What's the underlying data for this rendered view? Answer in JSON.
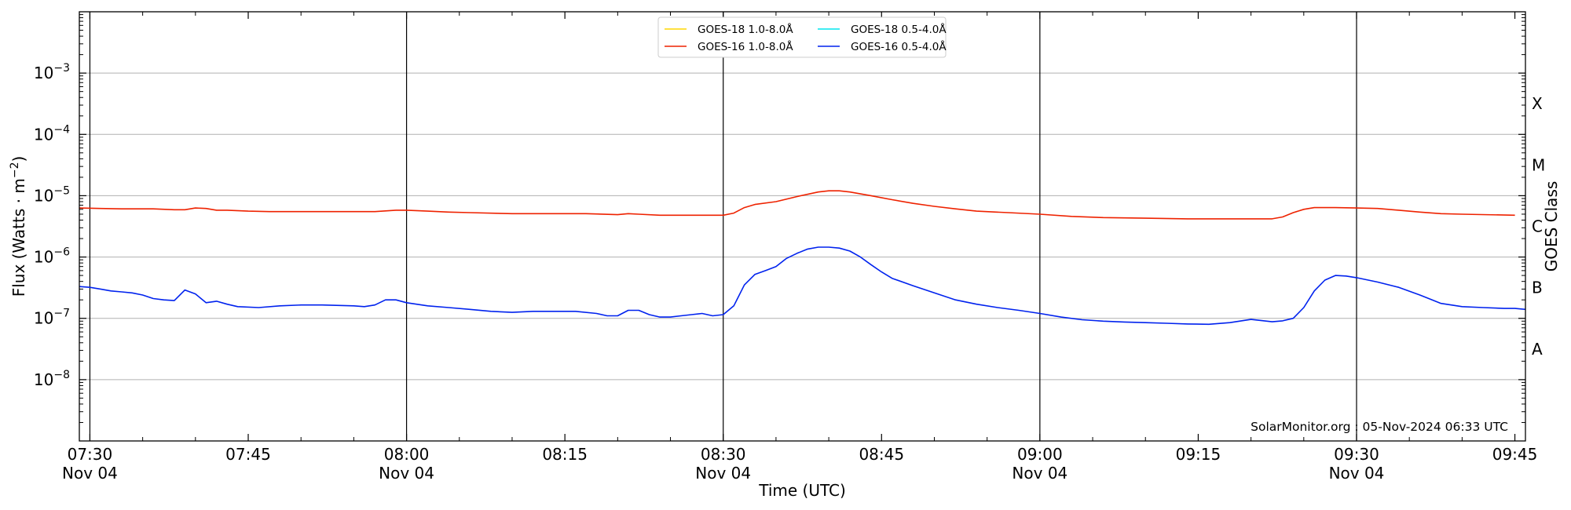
{
  "chart_data": {
    "type": "line",
    "xlabel": "Time (UTC)",
    "ylabel": "Flux (Watts · m⁻²)",
    "ylabel_parts": {
      "base": "Flux (Watts · m",
      "exp": "−2",
      "close": ")"
    },
    "right_label": "GOES Class",
    "x_range_minutes": [
      -1,
      136
    ],
    "x_origin": "Nov 04 07:30",
    "ylim": [
      1e-09,
      0.01
    ],
    "yscale": "log",
    "grid": "horizontal gridlines at each decade; vertical lines at each half hour",
    "legend_position": "top-center",
    "watermark": "SolarMonitor.org : 05-Nov-2024 06:33 UTC",
    "x_ticks": [
      {
        "minute": 0,
        "label": "07:30",
        "date": "Nov 04"
      },
      {
        "minute": 15,
        "label": "07:45",
        "date": ""
      },
      {
        "minute": 30,
        "label": "08:00",
        "date": "Nov 04"
      },
      {
        "minute": 45,
        "label": "08:15",
        "date": ""
      },
      {
        "minute": 60,
        "label": "08:30",
        "date": "Nov 04"
      },
      {
        "minute": 75,
        "label": "08:45",
        "date": ""
      },
      {
        "minute": 90,
        "label": "09:00",
        "date": "Nov 04"
      },
      {
        "minute": 105,
        "label": "09:15",
        "date": ""
      },
      {
        "minute": 120,
        "label": "09:30",
        "date": "Nov 04"
      },
      {
        "minute": 135,
        "label": "09:45",
        "date": ""
      }
    ],
    "y_ticks": [
      {
        "exp": -8,
        "label": "10",
        "sup": "−8"
      },
      {
        "exp": -7,
        "label": "10",
        "sup": "−7"
      },
      {
        "exp": -6,
        "label": "10",
        "sup": "−6"
      },
      {
        "exp": -5,
        "label": "10",
        "sup": "−5"
      },
      {
        "exp": -4,
        "label": "10",
        "sup": "−4"
      },
      {
        "exp": -3,
        "label": "10",
        "sup": "−3"
      }
    ],
    "goes_classes": [
      {
        "label": "A",
        "exp": -7.5
      },
      {
        "label": "B",
        "exp": -6.5
      },
      {
        "label": "C",
        "exp": -5.5
      },
      {
        "label": "M",
        "exp": -4.5
      },
      {
        "label": "X",
        "exp": -3.5
      }
    ],
    "series": [
      {
        "name": "GOES-18 1.0-8.0Å",
        "color": "#ffd700",
        "points": []
      },
      {
        "name": "GOES-18 0.5-4.0Å",
        "color": "#00e5ee",
        "points": []
      },
      {
        "name": "GOES-16 1.0-8.0Å",
        "color": "#ee2200",
        "points": [
          [
            -1,
            6.3e-06
          ],
          [
            1,
            6.2e-06
          ],
          [
            3,
            6.1e-06
          ],
          [
            6,
            6.1e-06
          ],
          [
            8,
            5.9e-06
          ],
          [
            9,
            5.9e-06
          ],
          [
            10,
            6.3e-06
          ],
          [
            11,
            6.2e-06
          ],
          [
            12,
            5.8e-06
          ],
          [
            13,
            5.8e-06
          ],
          [
            15,
            5.6e-06
          ],
          [
            17,
            5.5e-06
          ],
          [
            20,
            5.5e-06
          ],
          [
            24,
            5.5e-06
          ],
          [
            27,
            5.5e-06
          ],
          [
            29,
            5.8e-06
          ],
          [
            30,
            5.8e-06
          ],
          [
            32,
            5.6e-06
          ],
          [
            34,
            5.4e-06
          ],
          [
            36,
            5.3e-06
          ],
          [
            40,
            5.1e-06
          ],
          [
            43,
            5.1e-06
          ],
          [
            47,
            5.1e-06
          ],
          [
            50,
            4.9e-06
          ],
          [
            51,
            5.1e-06
          ],
          [
            52,
            5e-06
          ],
          [
            54,
            4.8e-06
          ],
          [
            57,
            4.8e-06
          ],
          [
            60,
            4.8e-06
          ],
          [
            61,
            5.2e-06
          ],
          [
            62,
            6.4e-06
          ],
          [
            63,
            7.2e-06
          ],
          [
            65,
            8e-06
          ],
          [
            67,
            9.7e-06
          ],
          [
            69,
            1.15e-05
          ],
          [
            70,
            1.2e-05
          ],
          [
            71,
            1.2e-05
          ],
          [
            72,
            1.15e-05
          ],
          [
            74,
            1e-05
          ],
          [
            76,
            8.6e-06
          ],
          [
            78,
            7.5e-06
          ],
          [
            80,
            6.7e-06
          ],
          [
            82,
            6.1e-06
          ],
          [
            84,
            5.6e-06
          ],
          [
            87,
            5.3e-06
          ],
          [
            90,
            5e-06
          ],
          [
            93,
            4.6e-06
          ],
          [
            96,
            4.4e-06
          ],
          [
            100,
            4.3e-06
          ],
          [
            104,
            4.2e-06
          ],
          [
            106,
            4.2e-06
          ],
          [
            108,
            4.2e-06
          ],
          [
            110,
            4.2e-06
          ],
          [
            112,
            4.2e-06
          ],
          [
            113,
            4.5e-06
          ],
          [
            114,
            5.3e-06
          ],
          [
            115,
            6e-06
          ],
          [
            116,
            6.4e-06
          ],
          [
            118,
            6.4e-06
          ],
          [
            120,
            6.3e-06
          ],
          [
            122,
            6.2e-06
          ],
          [
            124,
            5.8e-06
          ],
          [
            126,
            5.4e-06
          ],
          [
            128,
            5.1e-06
          ],
          [
            130,
            5e-06
          ],
          [
            135,
            4.8e-06
          ]
        ]
      },
      {
        "name": "GOES-16 0.5-4.0Å",
        "color": "#0022ee",
        "points": [
          [
            -1,
            3.3e-07
          ],
          [
            0,
            3.2e-07
          ],
          [
            1,
            3e-07
          ],
          [
            2,
            2.8e-07
          ],
          [
            3,
            2.7e-07
          ],
          [
            4,
            2.6e-07
          ],
          [
            5,
            2.4e-07
          ],
          [
            6,
            2.1e-07
          ],
          [
            7,
            2e-07
          ],
          [
            8,
            1.95e-07
          ],
          [
            9,
            2.9e-07
          ],
          [
            10,
            2.5e-07
          ],
          [
            11,
            1.8e-07
          ],
          [
            12,
            1.9e-07
          ],
          [
            13,
            1.7e-07
          ],
          [
            14,
            1.55e-07
          ],
          [
            16,
            1.5e-07
          ],
          [
            18,
            1.6e-07
          ],
          [
            20,
            1.65e-07
          ],
          [
            22,
            1.65e-07
          ],
          [
            25,
            1.6e-07
          ],
          [
            26,
            1.55e-07
          ],
          [
            27,
            1.65e-07
          ],
          [
            28,
            2e-07
          ],
          [
            29,
            2e-07
          ],
          [
            30,
            1.8e-07
          ],
          [
            32,
            1.6e-07
          ],
          [
            34,
            1.5e-07
          ],
          [
            36,
            1.4e-07
          ],
          [
            38,
            1.3e-07
          ],
          [
            40,
            1.25e-07
          ],
          [
            42,
            1.3e-07
          ],
          [
            44,
            1.3e-07
          ],
          [
            46,
            1.3e-07
          ],
          [
            48,
            1.2e-07
          ],
          [
            49,
            1.1e-07
          ],
          [
            50,
            1.1e-07
          ],
          [
            51,
            1.35e-07
          ],
          [
            52,
            1.35e-07
          ],
          [
            53,
            1.15e-07
          ],
          [
            54,
            1.05e-07
          ],
          [
            55,
            1.05e-07
          ],
          [
            56,
            1.1e-07
          ],
          [
            57,
            1.15e-07
          ],
          [
            58,
            1.2e-07
          ],
          [
            59,
            1.1e-07
          ],
          [
            60,
            1.15e-07
          ],
          [
            61,
            1.6e-07
          ],
          [
            62,
            3.5e-07
          ],
          [
            63,
            5.2e-07
          ],
          [
            64,
            6e-07
          ],
          [
            65,
            7e-07
          ],
          [
            66,
            9.5e-07
          ],
          [
            67,
            1.15e-06
          ],
          [
            68,
            1.35e-06
          ],
          [
            69,
            1.45e-06
          ],
          [
            70,
            1.45e-06
          ],
          [
            71,
            1.4e-06
          ],
          [
            72,
            1.25e-06
          ],
          [
            73,
            1e-06
          ],
          [
            74,
            7.5e-07
          ],
          [
            75,
            5.7e-07
          ],
          [
            76,
            4.5e-07
          ],
          [
            78,
            3.4e-07
          ],
          [
            80,
            2.6e-07
          ],
          [
            82,
            2e-07
          ],
          [
            84,
            1.7e-07
          ],
          [
            86,
            1.5e-07
          ],
          [
            88,
            1.35e-07
          ],
          [
            90,
            1.2e-07
          ],
          [
            92,
            1.05e-07
          ],
          [
            94,
            9.5e-08
          ],
          [
            96,
            9e-08
          ],
          [
            98,
            8.7e-08
          ],
          [
            100,
            8.5e-08
          ],
          [
            102,
            8.3e-08
          ],
          [
            104,
            8.1e-08
          ],
          [
            106,
            8e-08
          ],
          [
            108,
            8.5e-08
          ],
          [
            110,
            9.6e-08
          ],
          [
            112,
            8.8e-08
          ],
          [
            113,
            9.1e-08
          ],
          [
            114,
            1e-07
          ],
          [
            115,
            1.5e-07
          ],
          [
            116,
            2.8e-07
          ],
          [
            117,
            4.2e-07
          ],
          [
            118,
            5e-07
          ],
          [
            119,
            4.9e-07
          ],
          [
            120,
            4.6e-07
          ],
          [
            122,
            3.9e-07
          ],
          [
            124,
            3.2e-07
          ],
          [
            126,
            2.4e-07
          ],
          [
            128,
            1.75e-07
          ],
          [
            130,
            1.55e-07
          ],
          [
            132,
            1.5e-07
          ],
          [
            134,
            1.45e-07
          ],
          [
            135,
            1.45e-07
          ],
          [
            136,
            1.4e-07
          ]
        ]
      }
    ],
    "legend_order": [
      0,
      2,
      1,
      3
    ]
  }
}
